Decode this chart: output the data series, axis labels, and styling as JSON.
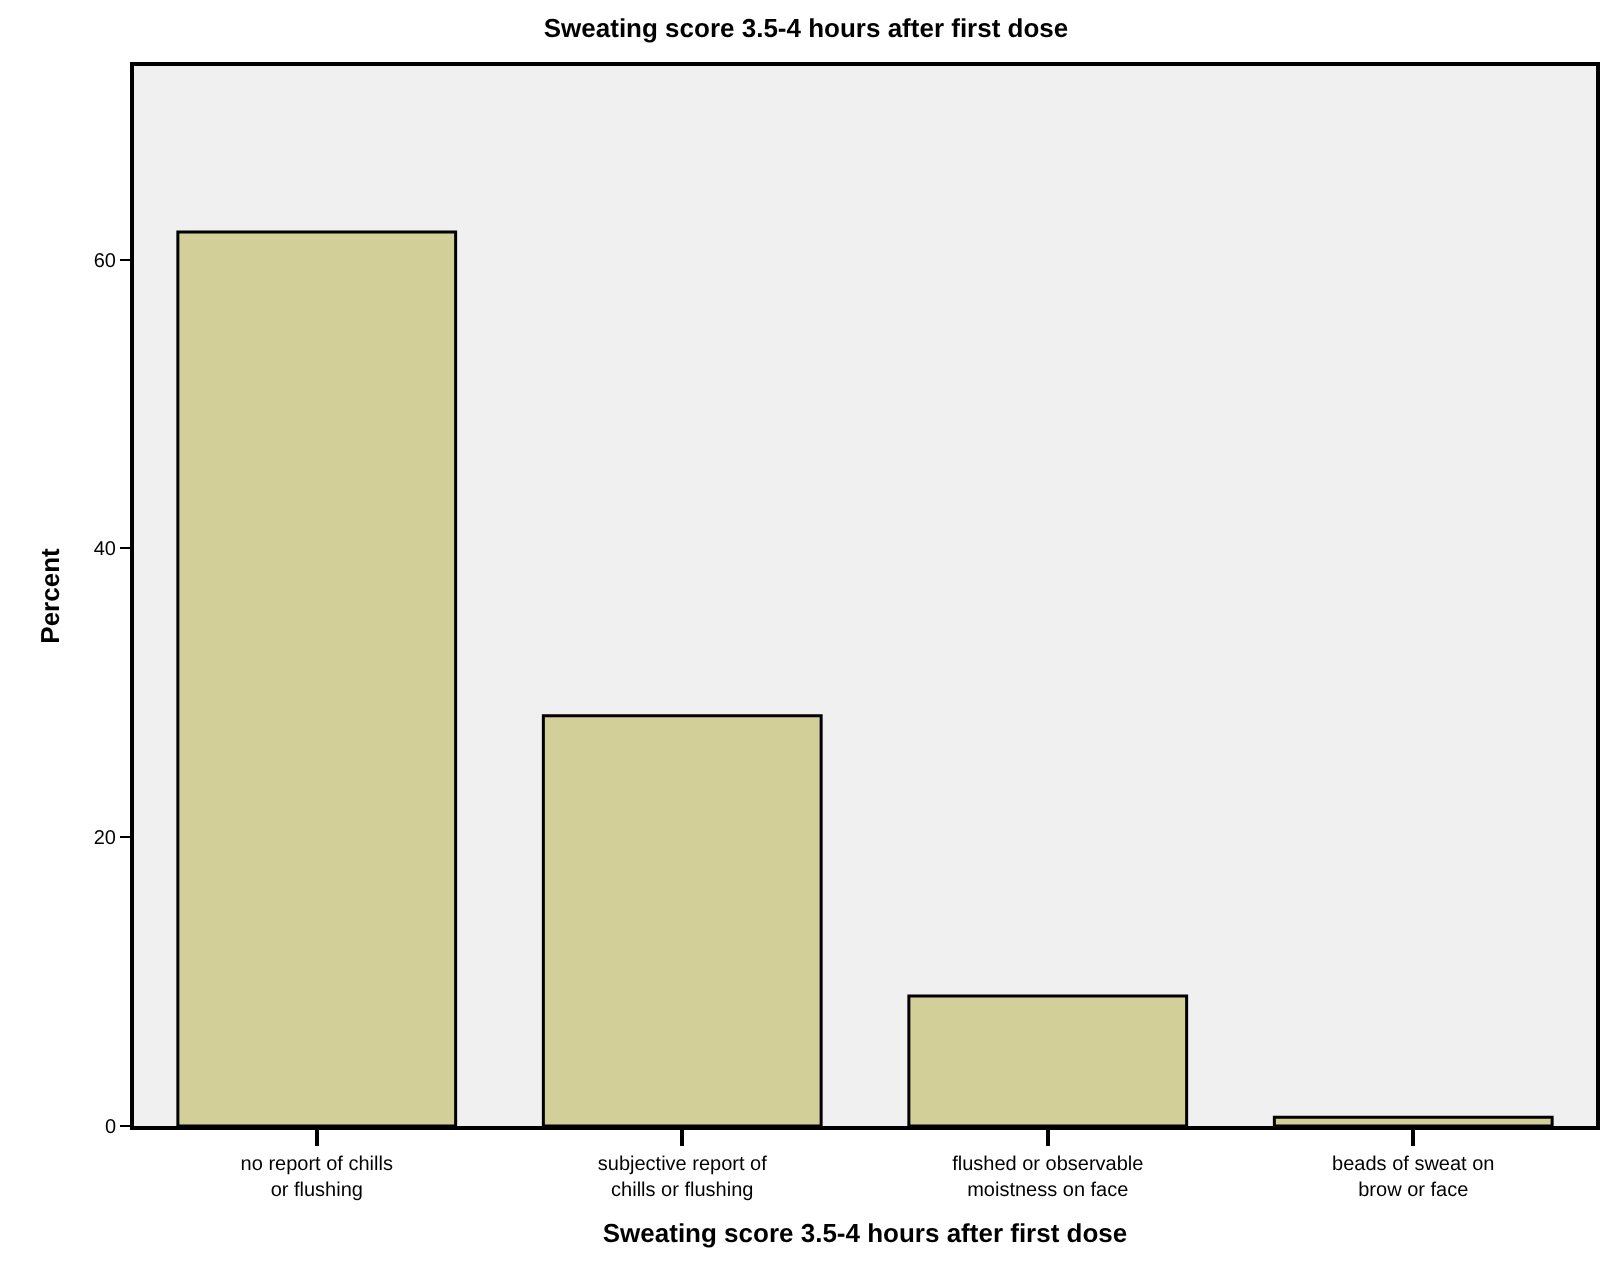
{
  "chart_data": {
    "type": "bar",
    "title": "Sweating score 3.5-4 hours after first dose",
    "xlabel": "Sweating score 3.5-4 hours after first dose",
    "ylabel": "Percent",
    "categories": [
      "no report of chills or flushing",
      "subjective report of chills or flushing",
      "flushed or observable moistness on face",
      "beads of sweat on brow or face"
    ],
    "values": [
      61.9,
      28.4,
      9.0,
      0.6
    ],
    "color": "#d3cf98",
    "ylim": [
      0,
      73.4
    ],
    "yticks": [
      0,
      20,
      40,
      60
    ]
  }
}
